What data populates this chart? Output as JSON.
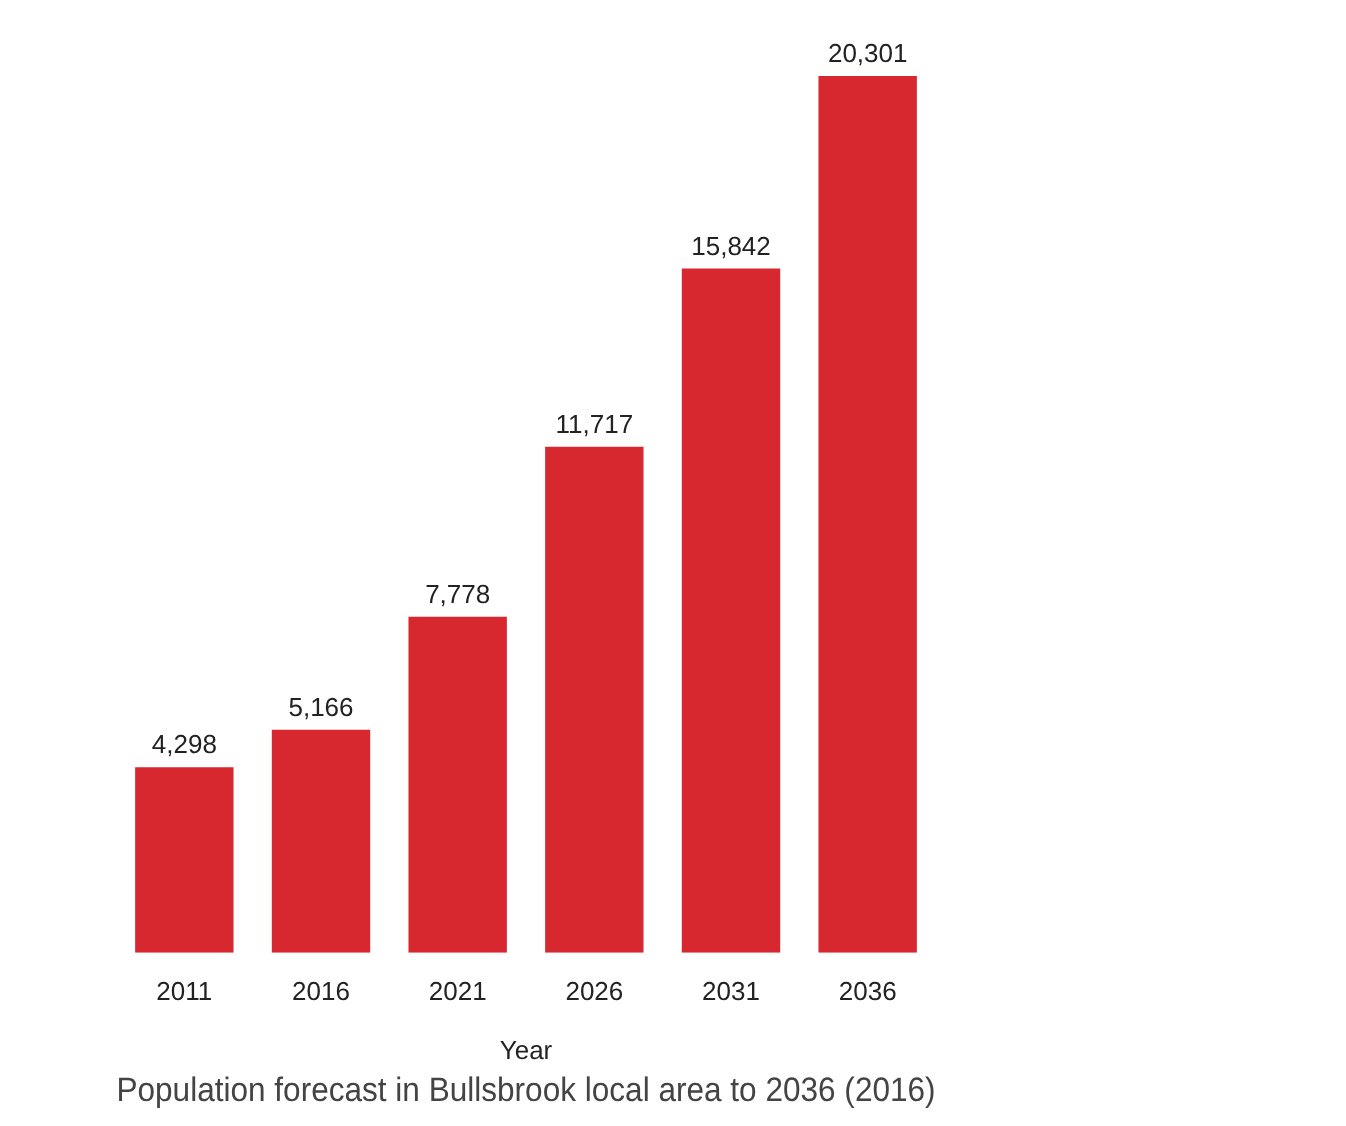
{
  "chart_data": {
    "type": "bar",
    "title": "Population forecast in Bullsbrook local area to 2036 (2016)",
    "xlabel": "Year",
    "categories": [
      "2011",
      "2016",
      "2021",
      "2026",
      "2031",
      "2036"
    ],
    "values": [
      4298,
      5166,
      7778,
      11717,
      15842,
      20301
    ],
    "value_labels": [
      "4,298",
      "5,166",
      "7,778",
      "11,717",
      "15,842",
      "20,301"
    ],
    "color": "#d7282f",
    "grid": false,
    "legend": false
  }
}
